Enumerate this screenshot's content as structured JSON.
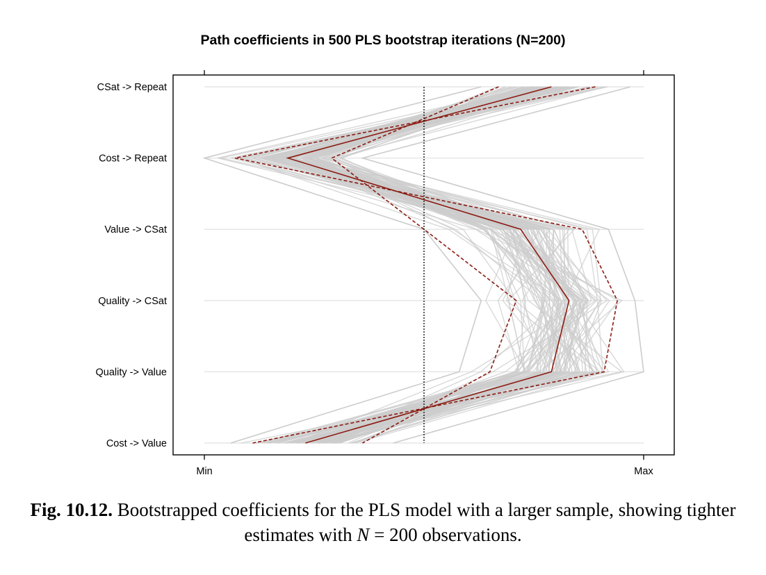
{
  "chart_data": {
    "type": "line",
    "subtype": "parallel-coordinates",
    "title": "Path coefficients in 500 PLS bootstrap iterations (N=200)",
    "categories": [
      "CSat -> Repeat",
      "Cost -> Repeat",
      "Value -> CSat",
      "Quality -> CSat",
      "Quality -> Value",
      "Cost -> Value"
    ],
    "x_axis": {
      "min_label": "Min",
      "max_label": "Max",
      "range": [
        0,
        1
      ],
      "scale": "each coefficient scaled from its bootstrap minimum to maximum"
    },
    "zero_reference": 0.5,
    "series": [
      {
        "values": [
          0.79,
          0.19,
          0.72,
          0.83,
          0.79,
          0.23
        ]
      },
      {
        "values": [
          0.89,
          0.07,
          0.86,
          0.94,
          0.91,
          0.11
        ]
      },
      {
        "values": [
          0.67,
          0.29,
          0.5,
          0.71,
          0.65,
          0.36
        ]
      }
    ],
    "series_styles": [
      "solid",
      "dashed",
      "dashed"
    ],
    "bootstrap_band": {
      "description": "500 bootstrap iteration lines",
      "lower": [
        0.63,
        0.0,
        0.5,
        0.63,
        0.58,
        0.06
      ],
      "upper": [
        0.97,
        0.36,
        0.92,
        0.98,
        1.0,
        0.43
      ],
      "iterations": 500
    },
    "grid": true,
    "colors": {
      "band": "#cccccc",
      "estimate": "#8b1a10",
      "interval": "#8b1a10",
      "zero_line": "#000000"
    }
  },
  "caption": {
    "label": "Fig. 10.12.",
    "text_before": " Bootstrapped coefficients for the PLS model with a larger sample, showing tighter estimates with ",
    "n_symbol": "N",
    "text_after": " = 200 observations."
  }
}
